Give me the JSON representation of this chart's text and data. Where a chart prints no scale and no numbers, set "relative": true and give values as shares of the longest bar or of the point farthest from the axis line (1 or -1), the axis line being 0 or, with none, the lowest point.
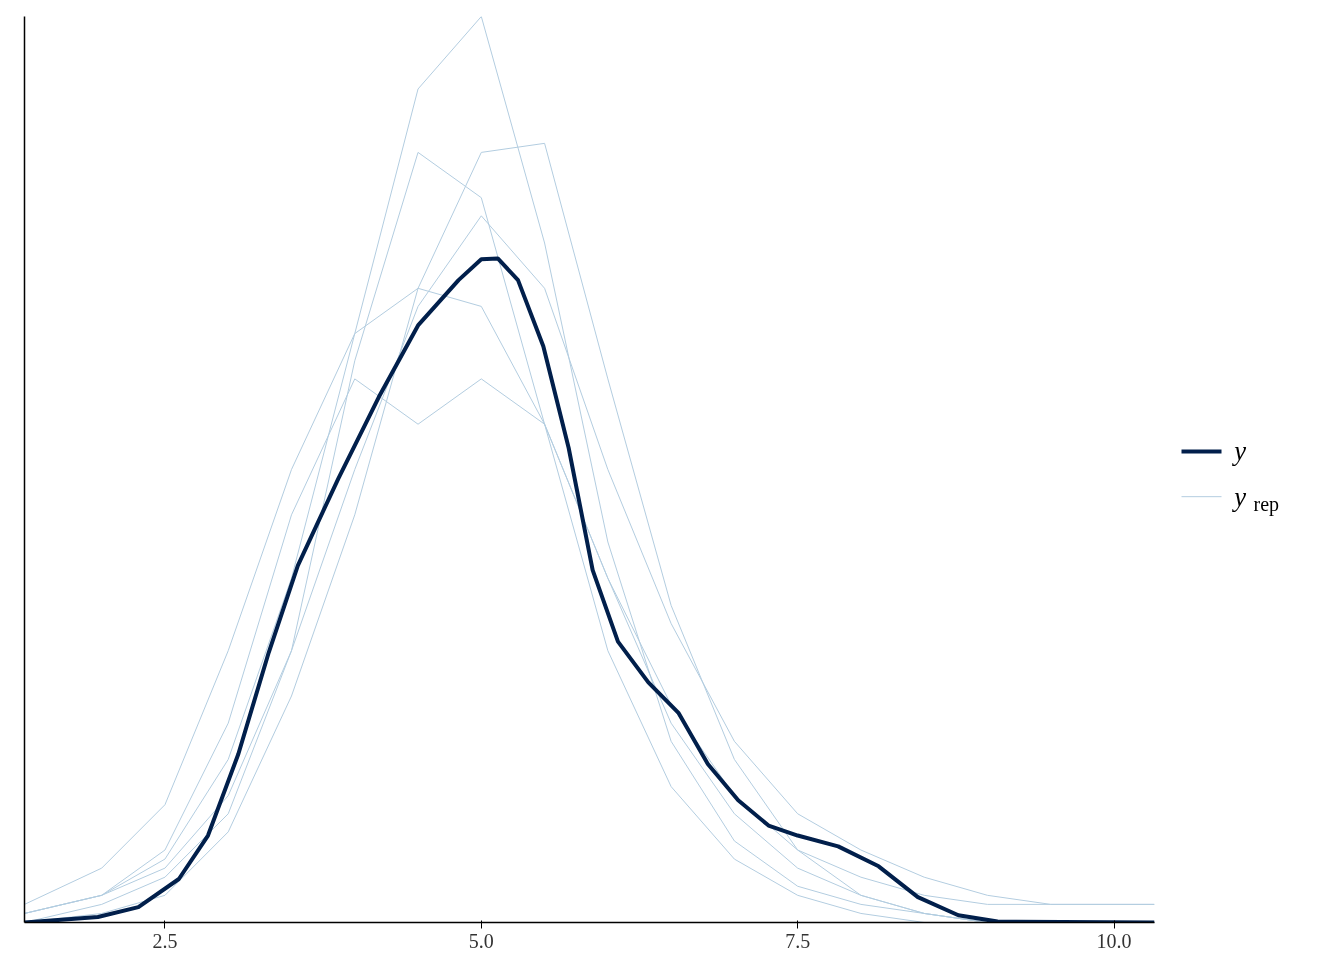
{
  "chart_data": {
    "type": "line",
    "relative": true,
    "xlim": [
      1.39,
      10.32
    ],
    "xticks": [
      2.5,
      {
        "value": 5,
        "label": "5.0"
      },
      7.5,
      {
        "value": 10,
        "label": "10.0"
      }
    ],
    "tick_labels": "x",
    "legend": "right",
    "series": [
      {
        "name": "y$_{rep}$",
        "color": "#b3cde0",
        "x": [
          1.39,
          2,
          2.5,
          3,
          3.5,
          4,
          4.5,
          5,
          5.5,
          6,
          6.5,
          7,
          7.5,
          8,
          8.5,
          9,
          9.5,
          10,
          10.32
        ],
        "values": [
          0.01,
          0.03,
          0.07,
          0.18,
          0.38,
          0.65,
          0.92,
          1.0,
          0.75,
          0.42,
          0.2,
          0.09,
          0.04,
          0.02,
          0.01,
          0,
          0,
          0,
          0
        ]
      },
      {
        "color": "#b3cde0",
        "x": [
          1.39,
          2,
          2.5,
          3,
          3.5,
          4,
          4.5,
          5,
          5.5,
          6,
          6.5,
          7,
          7.5,
          8,
          8.5,
          9,
          9.5,
          10,
          10.32
        ],
        "values": [
          0.02,
          0.06,
          0.13,
          0.3,
          0.5,
          0.65,
          0.7,
          0.68,
          0.55,
          0.38,
          0.24,
          0.14,
          0.08,
          0.05,
          0.03,
          0.02,
          0.02,
          0.02,
          0.02
        ]
      },
      {
        "color": "#b3cde0",
        "x": [
          1.39,
          2,
          2.5,
          3,
          3.5,
          4,
          4.5,
          5,
          5.5,
          6,
          6.5,
          7,
          7.5,
          8,
          8.5,
          9,
          9.5,
          10,
          10.32
        ],
        "values": [
          0.01,
          0.03,
          0.06,
          0.14,
          0.3,
          0.5,
          0.68,
          0.78,
          0.7,
          0.5,
          0.33,
          0.2,
          0.12,
          0.08,
          0.05,
          0.03,
          0.02,
          0.02,
          0.02
        ]
      },
      {
        "color": "#b3cde0",
        "x": [
          1.39,
          2,
          2.5,
          3,
          3.5,
          4,
          4.5,
          5,
          5.5,
          6,
          6.5,
          7,
          7.5,
          8,
          8.5,
          9,
          9.5,
          10,
          10.32
        ],
        "values": [
          0.01,
          0.03,
          0.08,
          0.22,
          0.45,
          0.6,
          0.55,
          0.6,
          0.55,
          0.38,
          0.22,
          0.12,
          0.06,
          0.03,
          0.01,
          0,
          0,
          0,
          0
        ]
      },
      {
        "color": "#b3cde0",
        "x": [
          1.39,
          2,
          2.5,
          3,
          3.5,
          4,
          4.5,
          5,
          5.5,
          6,
          6.5,
          7,
          7.5,
          8,
          8.5,
          9,
          9.5,
          10,
          10.32
        ],
        "values": [
          0,
          0.02,
          0.05,
          0.12,
          0.3,
          0.62,
          0.85,
          0.8,
          0.55,
          0.3,
          0.15,
          0.07,
          0.03,
          0.01,
          0,
          0,
          0,
          0,
          0
        ]
      },
      {
        "color": "#b3cde0",
        "x": [
          1.39,
          2,
          2.5,
          3,
          3.5,
          4,
          4.5,
          5,
          5.5,
          6,
          6.5,
          7,
          7.5,
          8,
          8.5,
          9,
          9.5,
          10,
          10.32
        ],
        "values": [
          0,
          0.01,
          0.03,
          0.1,
          0.25,
          0.45,
          0.7,
          0.85,
          0.86,
          0.6,
          0.35,
          0.18,
          0.08,
          0.03,
          0.01,
          0,
          0,
          0,
          0
        ]
      },
      {
        "name": "y",
        "color": "#011f4b",
        "x": [
          1.39,
          1.97,
          2.29,
          2.61,
          2.84,
          3.08,
          3.32,
          3.55,
          3.87,
          4.19,
          4.5,
          4.82,
          5.0,
          5.13,
          5.29,
          5.49,
          5.69,
          5.88,
          6.08,
          6.32,
          6.56,
          6.79,
          7.03,
          7.27,
          7.5,
          7.82,
          8.14,
          8.45,
          8.77,
          9.08,
          10.32
        ],
        "values": [
          0,
          0.006,
          0.017,
          0.048,
          0.096,
          0.186,
          0.298,
          0.394,
          0.49,
          0.58,
          0.659,
          0.709,
          0.732,
          0.733,
          0.709,
          0.636,
          0.524,
          0.389,
          0.31,
          0.265,
          0.231,
          0.175,
          0.135,
          0.107,
          0.096,
          0.084,
          0.062,
          0.028,
          0.008,
          0.001,
          0
        ]
      }
    ]
  }
}
